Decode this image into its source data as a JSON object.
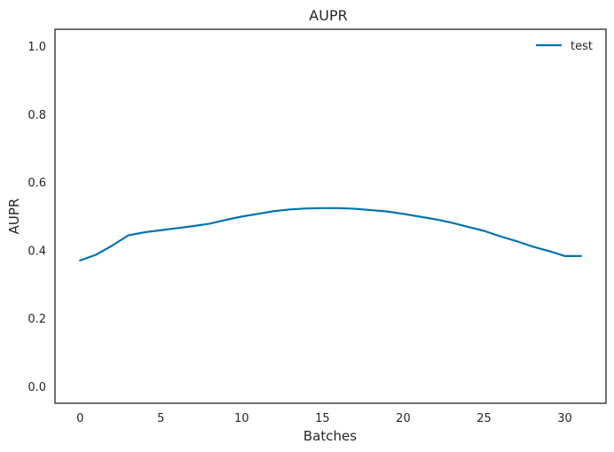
{
  "chart_data": {
    "type": "line",
    "title": "AUPR",
    "xlabel": "Batches",
    "ylabel": "AUPR",
    "xlim": [
      -1.55,
      32.55
    ],
    "ylim": [
      -0.05,
      1.05
    ],
    "xticks": [
      0,
      5,
      10,
      15,
      20,
      25,
      30
    ],
    "yticks": [
      0.0,
      0.2,
      0.4,
      0.6,
      0.8,
      1.0
    ],
    "xtick_labels": [
      "0",
      "5",
      "10",
      "15",
      "20",
      "25",
      "30"
    ],
    "ytick_labels": [
      "0.0",
      "0.2",
      "0.4",
      "0.6",
      "0.8",
      "1.0"
    ],
    "grid": false,
    "legend_position": "top-right",
    "series": [
      {
        "name": "test",
        "color": "#0072b2",
        "x": [
          0,
          1,
          2,
          3,
          4,
          5,
          6,
          7,
          8,
          9,
          10,
          11,
          12,
          13,
          14,
          15,
          16,
          17,
          18,
          19,
          20,
          21,
          22,
          23,
          24,
          25,
          26,
          27,
          28,
          29,
          30,
          31
        ],
        "y": [
          0.37,
          0.387,
          0.414,
          0.444,
          0.453,
          0.459,
          0.465,
          0.471,
          0.478,
          0.489,
          0.499,
          0.507,
          0.515,
          0.52,
          0.523,
          0.524,
          0.524,
          0.522,
          0.518,
          0.514,
          0.507,
          0.499,
          0.491,
          0.481,
          0.469,
          0.457,
          0.441,
          0.427,
          0.411,
          0.398,
          0.383,
          0.383
        ]
      }
    ]
  }
}
